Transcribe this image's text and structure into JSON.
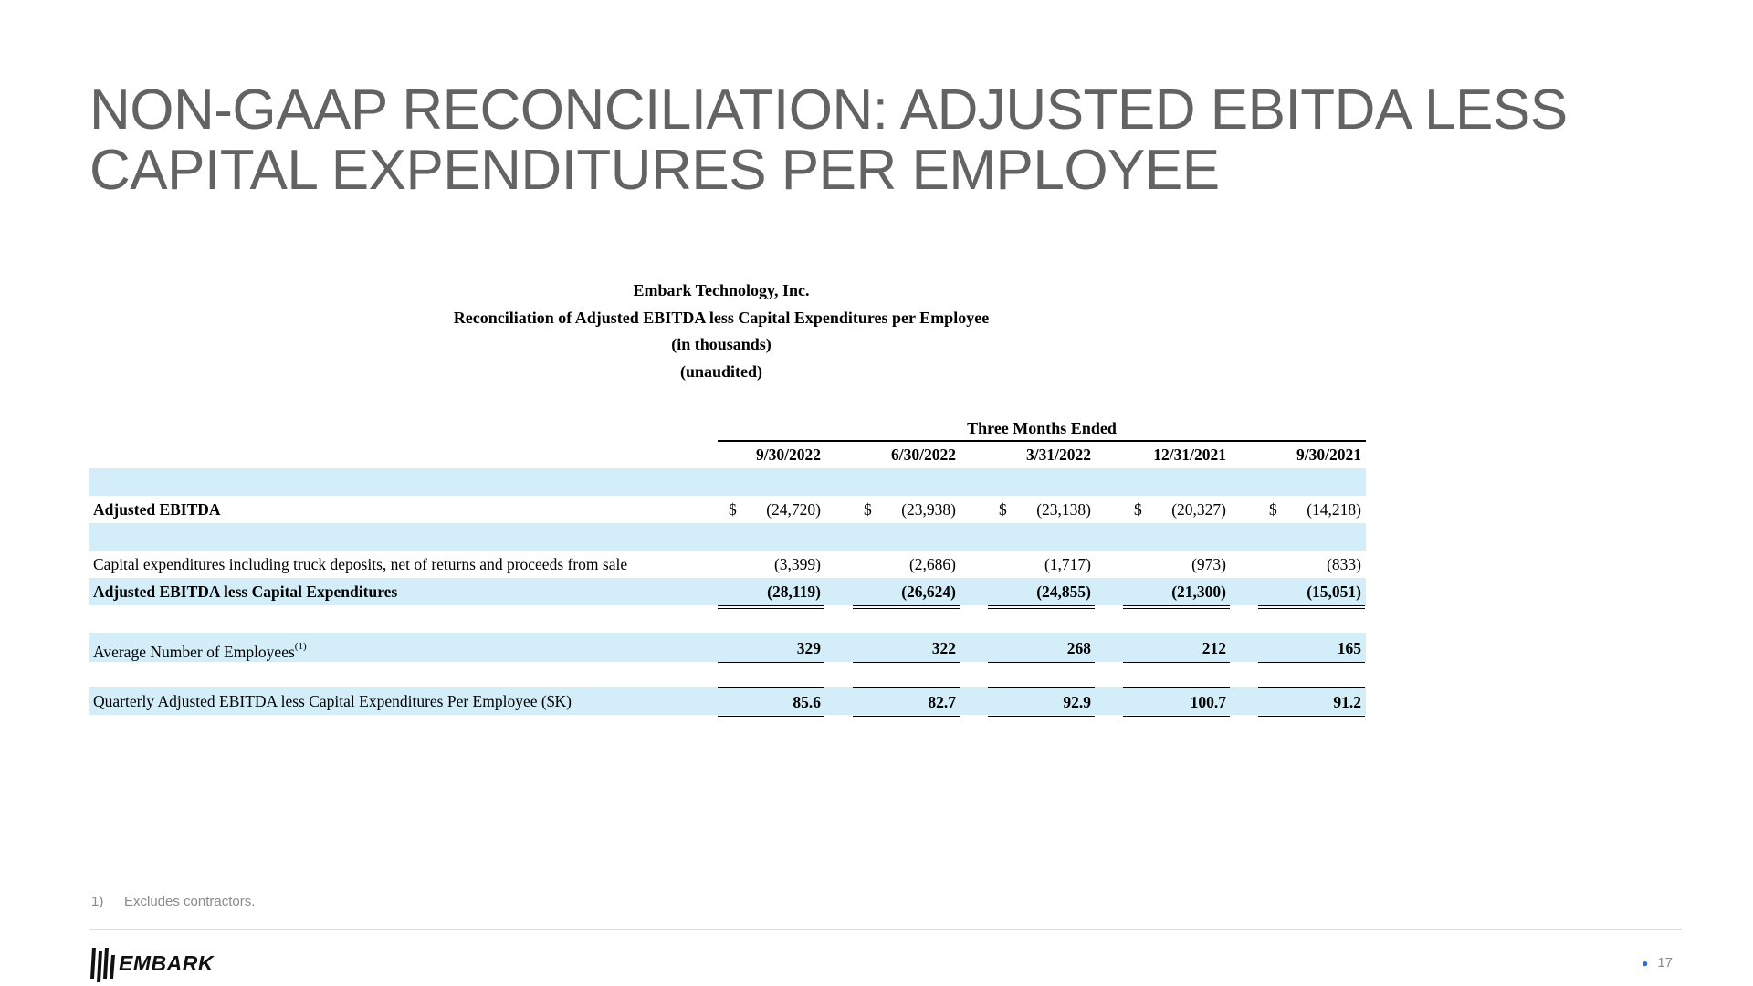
{
  "slide": {
    "title_line1": "NON-GAAP RECONCILIATION: ADJUSTED EBITDA LESS",
    "title_line2": "CAPITAL EXPENDITURES PER EMPLOYEE"
  },
  "report": {
    "company": "Embark Technology, Inc.",
    "subtitle": "Reconciliation of Adjusted EBITDA less Capital Expenditures per Employee",
    "units": "(in thousands)",
    "audit": "(unaudited)",
    "group_header": "Three Months Ended",
    "columns": [
      "9/30/2022",
      "6/30/2022",
      "3/31/2022",
      "12/31/2021",
      "9/30/2021"
    ],
    "rows": {
      "adjusted_ebitda": {
        "label": "Adjusted EBITDA",
        "currency": "$",
        "values": [
          "(24,720)",
          "(23,938)",
          "(23,138)",
          "(20,327)",
          "(14,218)"
        ]
      },
      "capex": {
        "label": "Capital expenditures including truck deposits, net of returns and proceeds from sale",
        "values": [
          "(3,399)",
          "(2,686)",
          "(1,717)",
          "(973)",
          "(833)"
        ]
      },
      "ebitda_less_capex": {
        "label": "Adjusted EBITDA less Capital Expenditures",
        "values": [
          "(28,119)",
          "(26,624)",
          "(24,855)",
          "(21,300)",
          "(15,051)"
        ]
      },
      "employees": {
        "label": "Average Number of Employees",
        "footnote_ref": "(1)",
        "values": [
          "329",
          "322",
          "268",
          "212",
          "165"
        ]
      },
      "per_employee": {
        "label": "Quarterly Adjusted EBITDA less Capital Expenditures Per Employee ($K)",
        "values": [
          "85.6",
          "82.7",
          "92.9",
          "100.7",
          "91.2"
        ]
      }
    }
  },
  "footnote": {
    "number": "1)",
    "text": "Excludes contractors."
  },
  "footer": {
    "logo_text": "EMBARK",
    "page_number": "17",
    "accent_color": "#2b6fd6"
  },
  "colors": {
    "title": "#636363",
    "row_shade": "#d3eef8"
  }
}
